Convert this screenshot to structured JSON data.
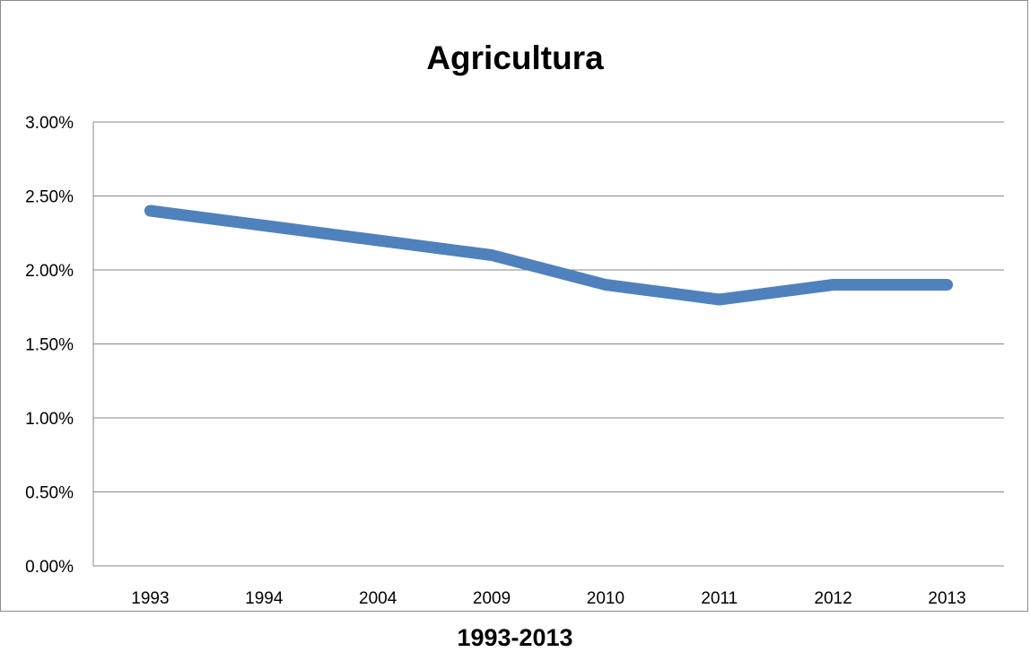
{
  "chart_data": {
    "type": "line",
    "title": "Agricultura",
    "xlabel": "1993-2013",
    "ylabel": "",
    "categories": [
      "1993",
      "1994",
      "2004",
      "2009",
      "2010",
      "2011",
      "2012",
      "2013"
    ],
    "series": [
      {
        "values": [
          0.024,
          0.023,
          0.022,
          0.021,
          0.019,
          0.018,
          0.019,
          0.019
        ],
        "color": "#4f81bd"
      }
    ],
    "ylim": [
      0,
      0.03
    ],
    "yticks": [
      "0.00%",
      "0.50%",
      "1.00%",
      "1.50%",
      "2.00%",
      "2.50%",
      "3.00%"
    ],
    "grid": true,
    "legend": "none"
  }
}
